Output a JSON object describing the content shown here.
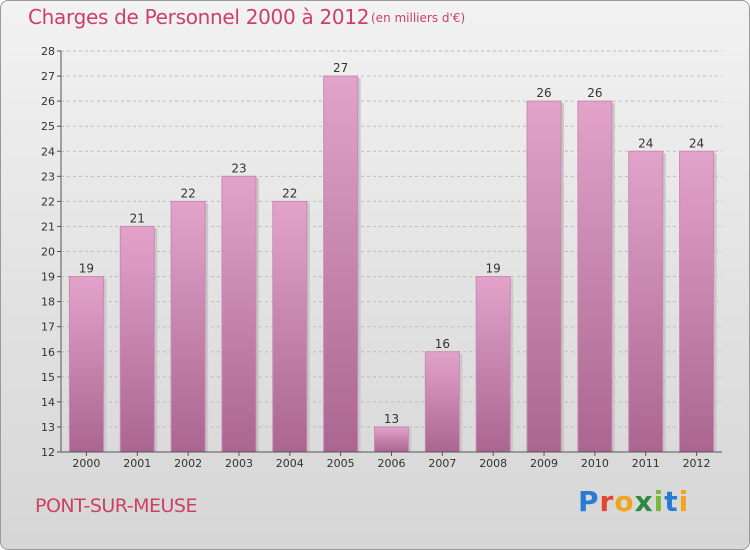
{
  "header": {
    "title": "Charges de Personnel 2000 à 2012",
    "subtitle": "(en milliers d'€)"
  },
  "footer": {
    "commune": "PONT-SUR-MEUSE",
    "logo": "Proxiti"
  },
  "colors": {
    "title": "#cc3f6a",
    "bar_top": "#e2a3cb",
    "bar_bottom": "#aa6690"
  },
  "chart_data": {
    "type": "bar",
    "title": "Charges de Personnel 2000 à 2012",
    "subtitle": "(en milliers d'€)",
    "categories": [
      "2000",
      "2001",
      "2002",
      "2003",
      "2004",
      "2005",
      "2006",
      "2007",
      "2008",
      "2009",
      "2010",
      "2011",
      "2012"
    ],
    "values": [
      19,
      21,
      22,
      23,
      22,
      27,
      13,
      16,
      19,
      26,
      26,
      24,
      24
    ],
    "ylim": [
      12,
      28
    ],
    "yticks": [
      12,
      13,
      14,
      15,
      16,
      17,
      18,
      19,
      20,
      21,
      22,
      23,
      24,
      25,
      26,
      27,
      28
    ],
    "xlabel": "",
    "ylabel": "",
    "grid": "horizontal-dashed",
    "legend": "none"
  }
}
